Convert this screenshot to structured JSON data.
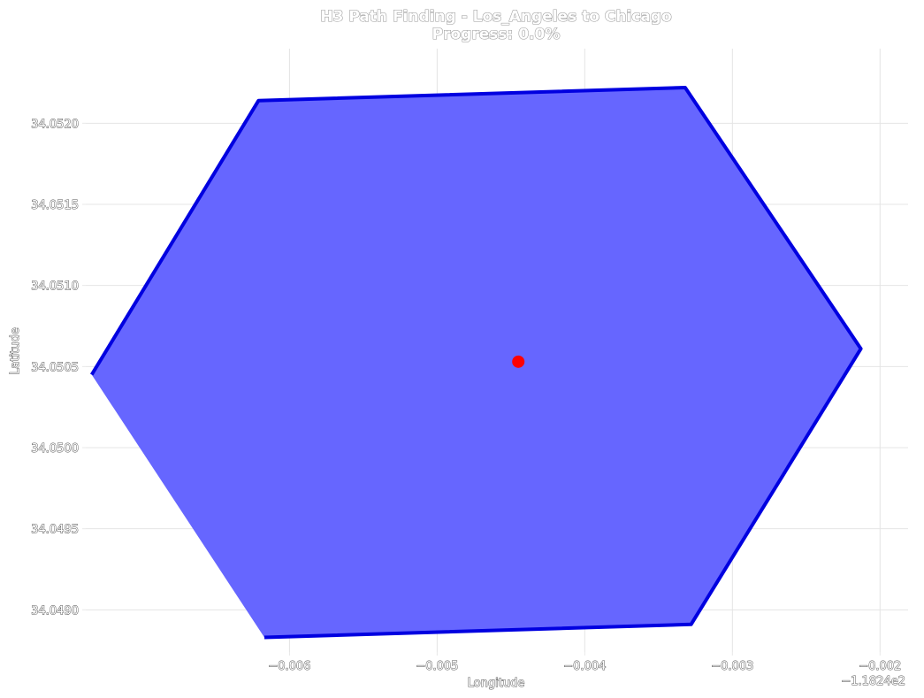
{
  "chart_data": {
    "type": "scatter",
    "title": "H3 Path Finding - Los_Angeles to Chicago",
    "subtitle": "Progress: 0.0%",
    "xlabel": "Longitude",
    "ylabel": "Latitude",
    "x_offset_label": "−1.1824e2",
    "xlim": [
      -0.00738,
      -0.00181
    ],
    "ylim": [
      34.04874,
      34.05246
    ],
    "x_ticks": [
      -0.006,
      -0.005,
      -0.004,
      -0.003,
      -0.002
    ],
    "x_tick_labels": [
      "−0.006",
      "−0.005",
      "−0.004",
      "−0.003",
      "−0.002"
    ],
    "y_ticks": [
      34.049,
      34.0495,
      34.05,
      34.0505,
      34.051,
      34.0515,
      34.052
    ],
    "y_tick_labels": [
      "34.0490",
      "34.0495",
      "34.0500",
      "34.0505",
      "34.0510",
      "34.0515",
      "34.0520"
    ],
    "grid": true,
    "hexagon": {
      "vertices": [
        [
          -0.00734,
          34.05045
        ],
        [
          -0.00621,
          34.05214
        ],
        [
          -0.00332,
          34.05222
        ],
        [
          -0.00213,
          34.05061
        ],
        [
          -0.00328,
          34.04891
        ],
        [
          -0.00617,
          34.04883
        ]
      ],
      "fill_color": "#6666ff",
      "edge_color": "#0000e0"
    },
    "points": [
      {
        "x": -0.00445,
        "y": 34.05053,
        "color": "#ff0000"
      }
    ]
  }
}
